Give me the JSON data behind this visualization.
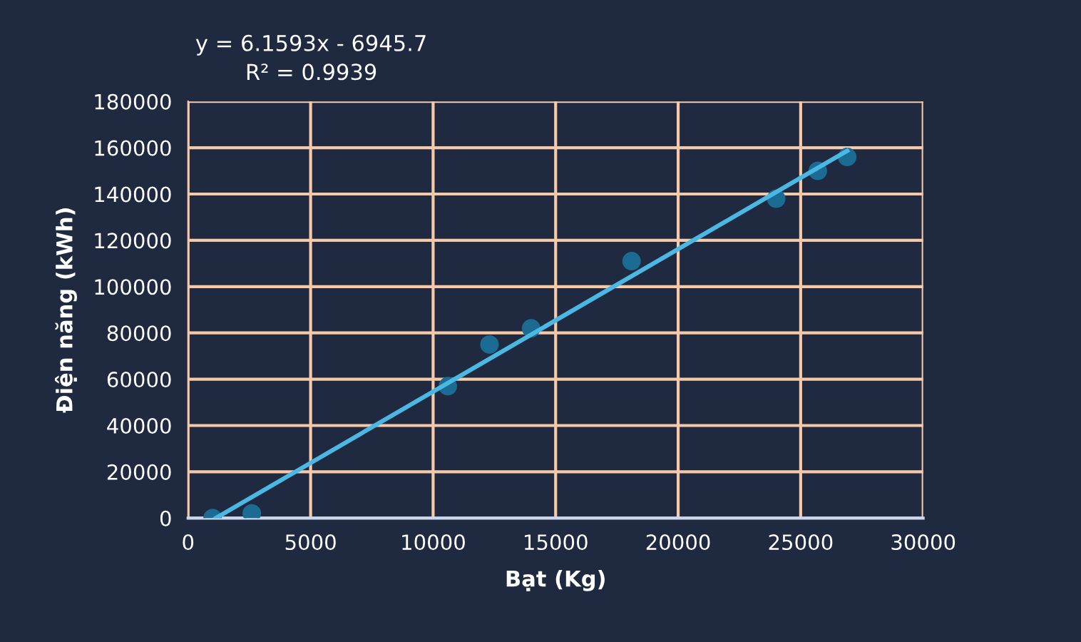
{
  "chart_data": {
    "type": "scatter",
    "xlabel": "Bạt (Kg)",
    "ylabel": "Điện năng (kWh)",
    "x": [
      1000,
      2600,
      10600,
      12300,
      14000,
      18100,
      24000,
      25700,
      26900
    ],
    "series": [
      {
        "color": "#1b6b93",
        "marker": "circle",
        "values": [
          0,
          2000,
          57000,
          75000,
          82000,
          111000,
          138000,
          150000,
          156000
        ]
      },
      {
        "type": "line",
        "color": "#4bb8e3",
        "marker": "none",
        "x": [
          1128,
          26900
        ],
        "values": [
          0,
          158700
        ]
      }
    ],
    "annotations": [
      "y = 6.1593x - 6945.7",
      "R² = 0.9939"
    ],
    "xlim": [
      0,
      30000
    ],
    "xticks": [
      0,
      5000,
      10000,
      15000,
      20000,
      25000,
      30000
    ],
    "ylim": [
      0,
      180000
    ],
    "yticks": [
      0,
      20000,
      40000,
      60000,
      80000,
      100000,
      120000,
      140000,
      160000,
      180000
    ],
    "grid": true,
    "legend": false
  }
}
